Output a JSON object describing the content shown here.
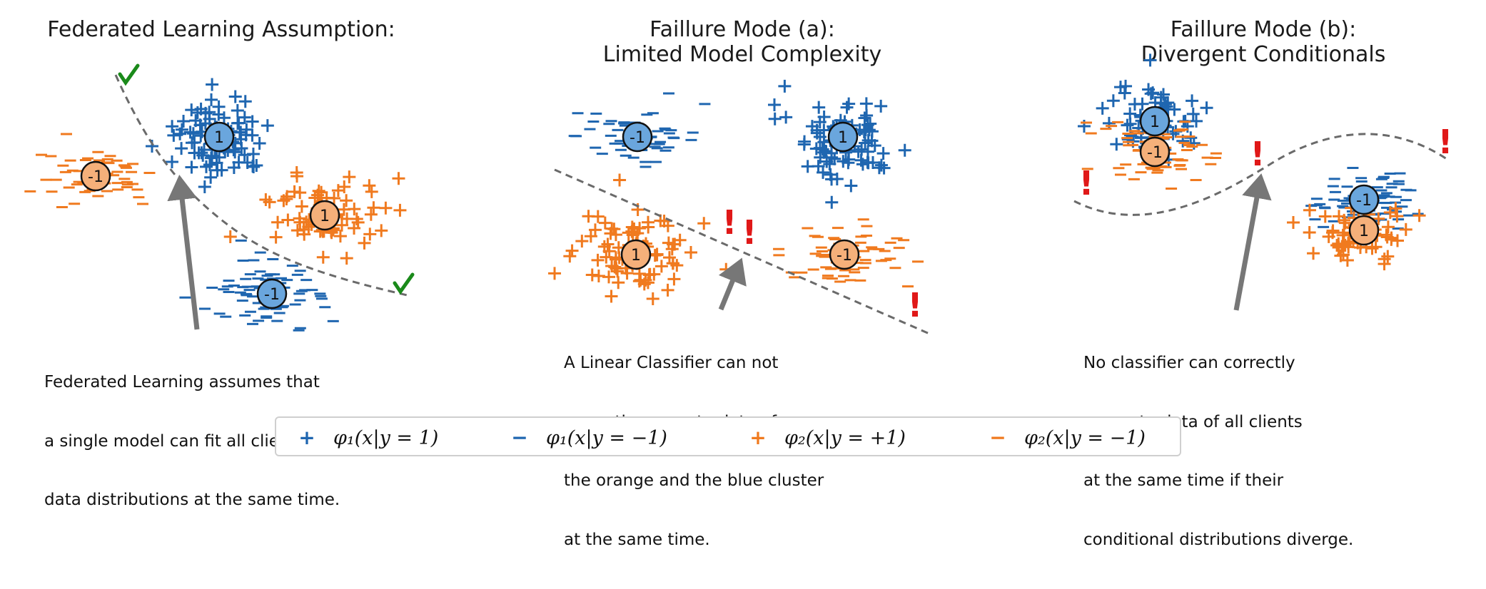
{
  "colors": {
    "blue": "#1f66b0",
    "orange": "#f07a1f",
    "blue_circle": "#6aa6dd",
    "orange_circle": "#f5b07a",
    "boundary": "#6a6a6a",
    "arrow": "#777777",
    "check": "#1a8a1a",
    "alert": "#e01818"
  },
  "panels": [
    {
      "title_lines": [
        "Federated Learning Assumption:"
      ],
      "caption_lines": [
        "Federated Learning assumes that",
        "a single model can fit all clients'",
        "data distributions at the same time."
      ],
      "clusters": [
        {
          "label": "1",
          "symbol": "+",
          "client": "phi1"
        },
        {
          "label": "-1",
          "symbol": "−",
          "client": "phi2"
        },
        {
          "label": "1",
          "symbol": "+",
          "client": "phi2"
        },
        {
          "label": "-1",
          "symbol": "−",
          "client": "phi1"
        }
      ],
      "markers": [
        "check-icon",
        "check-icon"
      ]
    },
    {
      "title_lines": [
        "Faillure Mode (a):",
        "Limited Model Complexity"
      ],
      "caption_lines": [
        "A Linear Classifier can not",
        "correctly separate data of",
        "the orange and the blue cluster",
        "at the same time."
      ],
      "clusters": [
        {
          "label": "-1",
          "symbol": "−",
          "client": "phi1"
        },
        {
          "label": "1",
          "symbol": "+",
          "client": "phi1"
        },
        {
          "label": "1",
          "symbol": "+",
          "client": "phi2"
        },
        {
          "label": "-1",
          "symbol": "−",
          "client": "phi2"
        }
      ],
      "markers": [
        "exclamation-icon",
        "exclamation-icon",
        "exclamation-icon"
      ]
    },
    {
      "title_lines": [
        "Faillure Mode (b):",
        "Divergent Conditionals"
      ],
      "caption_lines": [
        "No classifier can correctly",
        "separate data of all clients",
        "at the same time if their",
        "conditional distributions diverge."
      ],
      "clusters": [
        {
          "label": "1",
          "symbol": "+",
          "client": "phi1"
        },
        {
          "label": "-1",
          "symbol": "−",
          "client": "phi2"
        },
        {
          "label": "-1",
          "symbol": "−",
          "client": "phi1"
        },
        {
          "label": "1",
          "symbol": "+",
          "client": "phi2"
        }
      ],
      "markers": [
        "exclamation-icon",
        "exclamation-icon",
        "exclamation-icon"
      ]
    }
  ],
  "legend": [
    {
      "marker": "+",
      "color": "#1f66b0",
      "label": "φ₁(x|y = 1)"
    },
    {
      "marker": "−",
      "color": "#1f66b0",
      "label": "φ₁(x|y = −1)"
    },
    {
      "marker": "+",
      "color": "#f07a1f",
      "label": "φ₂(x|y = +1)"
    },
    {
      "marker": "−",
      "color": "#f07a1f",
      "label": "φ₂(x|y = −1)"
    }
  ]
}
